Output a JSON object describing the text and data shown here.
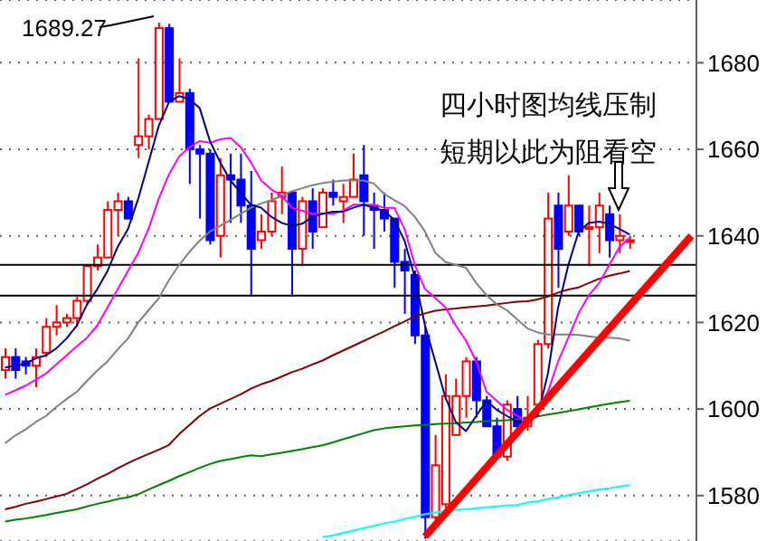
{
  "chart_data": {
    "type": "candlestick",
    "categories": [
      null,
      null,
      null,
      null,
      null,
      null,
      null,
      null,
      null,
      null,
      null,
      null,
      null,
      null,
      null,
      null,
      null,
      null,
      null,
      null,
      null,
      null,
      null,
      null,
      null,
      null,
      null,
      null,
      null,
      null,
      null,
      null,
      null,
      null,
      null,
      null,
      null,
      null,
      null,
      null,
      null,
      null,
      null,
      null,
      null,
      null,
      null,
      null,
      null,
      null,
      null,
      null,
      null,
      null,
      null,
      null,
      null,
      null,
      null,
      null,
      null,
      null,
      null,
      null,
      null,
      null,
      null,
      null
    ],
    "ohlc": [
      [
        1609,
        1614,
        1607,
        1612
      ],
      [
        1612,
        1614,
        1607,
        1609
      ],
      [
        1611,
        1612,
        1608,
        1610
      ],
      [
        1610,
        1614,
        1605,
        1612
      ],
      [
        1613,
        1621,
        1612,
        1619
      ],
      [
        1619,
        1624,
        1617,
        1620
      ],
      [
        1620,
        1622,
        1619,
        1621
      ],
      [
        1621,
        1626,
        1619,
        1625
      ],
      [
        1625,
        1633,
        1624,
        1633
      ],
      [
        1633,
        1638,
        1632,
        1635
      ],
      [
        1635,
        1648,
        1635,
        1646
      ],
      [
        1646,
        1650,
        1640,
        1648
      ],
      [
        1648,
        1649,
        1644,
        1644
      ],
      [
        1661,
        1681,
        1658,
        1663
      ],
      [
        1663,
        1668,
        1660,
        1667
      ],
      [
        1667,
        1689.27,
        1667,
        1688
      ],
      [
        1688,
        1689,
        1671,
        1671
      ],
      [
        1671,
        1681,
        1671,
        1673
      ],
      [
        1673,
        1674,
        1652,
        1660
      ],
      [
        1660,
        1661,
        1644,
        1659
      ],
      [
        1659,
        1660,
        1638,
        1639
      ],
      [
        1640,
        1658,
        1635,
        1654
      ],
      [
        1654,
        1659,
        1643,
        1653
      ],
      [
        1653,
        1659,
        1643,
        1647
      ],
      [
        1647,
        1655,
        1626,
        1637
      ],
      [
        1639,
        1645,
        1637,
        1641
      ],
      [
        1641,
        1650,
        1640,
        1648
      ],
      [
        1649,
        1656,
        1645,
        1650
      ],
      [
        1650,
        1650,
        1626,
        1637
      ],
      [
        1637,
        1649,
        1633,
        1648
      ],
      [
        1648,
        1651,
        1637,
        1641
      ],
      [
        1642,
        1651,
        1642,
        1650
      ],
      [
        1650,
        1653,
        1647,
        1649
      ],
      [
        1648,
        1652,
        1643,
        1649
      ],
      [
        1649,
        1659,
        1649,
        1653
      ],
      [
        1654,
        1661,
        1640,
        1648
      ],
      [
        1647,
        1650,
        1637,
        1646
      ],
      [
        1646,
        1650,
        1641,
        1644
      ],
      [
        1644,
        1644,
        1628,
        1634
      ],
      [
        1634,
        1637,
        1622,
        1632
      ],
      [
        1631,
        1632,
        1615,
        1617
      ],
      [
        1617,
        1619,
        1570,
        1575
      ],
      [
        1575,
        1594,
        1573,
        1587
      ],
      [
        1578,
        1608,
        1577,
        1603
      ],
      [
        1594,
        1607,
        1594,
        1603
      ],
      [
        1603,
        1612,
        1598,
        1611
      ],
      [
        1611,
        1612,
        1598,
        1602
      ],
      [
        1602,
        1603,
        1596,
        1596
      ],
      [
        1596,
        1598,
        1589,
        1589
      ],
      [
        1589,
        1602,
        1588,
        1601
      ],
      [
        1600,
        1603,
        1595,
        1596
      ],
      [
        1596,
        1603,
        1595,
        1598
      ],
      [
        1601,
        1616,
        1601,
        1615
      ],
      [
        1615,
        1650,
        1614,
        1644
      ],
      [
        1647,
        1650,
        1628,
        1637
      ],
      [
        1641,
        1654,
        1640,
        1647
      ],
      [
        1647,
        1647,
        1640,
        1641
      ],
      [
        1642,
        1647,
        1633,
        1642
      ],
      [
        1642,
        1650,
        1636,
        1647
      ],
      [
        1645,
        1647,
        1635,
        1639
      ],
      [
        1639,
        1645,
        1636,
        1640
      ],
      [
        1639,
        1640,
        1637,
        1639
      ],
      null,
      null,
      null,
      null,
      null,
      null
    ],
    "colors": [
      "#ff0000",
      "#0000ff",
      "#0000ff",
      "#ff0000",
      "#ff0000",
      "#ff0000",
      "#ff0000",
      "#ff0000",
      "#ff0000",
      "#ff0000",
      "#ff0000",
      "#ff0000",
      "#0000ff",
      "#ff0000",
      "#ff0000",
      "#ff0000",
      "#0000ff",
      "#ff0000",
      "#0000ff",
      "#0000ff",
      "#0000ff",
      "#ff0000",
      "#0000ff",
      "#0000ff",
      "#0000ff",
      "#ff0000",
      "#ff0000",
      "#ff0000",
      "#0000ff",
      "#ff0000",
      "#0000ff",
      "#ff0000",
      "#0000ff",
      "#ff0000",
      "#ff0000",
      "#0000ff",
      "#0000ff",
      "#0000ff",
      "#0000ff",
      "#0000ff",
      "#0000ff",
      "#0000ff",
      "#ff0000",
      "#ff0000",
      "#ff0000",
      "#ff0000",
      "#0000ff",
      "#0000ff",
      "#0000ff",
      "#ff0000",
      "#0000ff",
      "#ff0000",
      "#ff0000",
      "#ff0000",
      "#0000ff",
      "#ff0000",
      "#0000ff",
      "#ff0000",
      "#ff0000",
      "#0000ff",
      "#ff0000",
      "#ff0000",
      null,
      null,
      null,
      null,
      null,
      null
    ],
    "series": [
      {
        "type": "line",
        "color": "#00ffff",
        "values": [
          null,
          null,
          null,
          null,
          null,
          null,
          null,
          null,
          null,
          null,
          null,
          null,
          null,
          null,
          null,
          null,
          null,
          null,
          null,
          null,
          null,
          null,
          null,
          null,
          null,
          null,
          null,
          null,
          null,
          null,
          null,
          1570.4,
          1570.8,
          1571.4,
          1571.9,
          1572.5,
          1573,
          1573.6,
          1574,
          1574.6,
          1575.1,
          1575.7,
          1576.1,
          1576.4,
          1576.7,
          1576.8,
          1577.1,
          1577.3,
          1577.5,
          1577.7,
          1577.8,
          1578.4,
          1578.7,
          1579.2,
          1579.6,
          1580.1,
          1580.6,
          1581,
          1581.4,
          1581.7,
          1582.1,
          1582.4,
          null,
          null,
          null,
          null,
          null,
          null
        ]
      },
      {
        "type": "line",
        "color": "#008000",
        "values": [
          1574,
          1574.4,
          1574.7,
          1575.1,
          1575.5,
          1576,
          1576.4,
          1576.8,
          1577.5,
          1578.1,
          1578.6,
          1579.2,
          1579.6,
          1580.3,
          1581.4,
          1582.4,
          1583.4,
          1584.5,
          1585.4,
          1586.4,
          1587.3,
          1588,
          1588.4,
          1588.9,
          1589.3,
          1589.1,
          1589.5,
          1589.9,
          1590.3,
          1590.7,
          1591.2,
          1591.6,
          1592.3,
          1593,
          1593.7,
          1594.4,
          1595.1,
          1595.5,
          1595.8,
          1596,
          1596.2,
          1596.3,
          1596.5,
          1596.6,
          1596.7,
          1596.9,
          1597,
          1597.2,
          1597.3,
          1597.4,
          1597.6,
          1597.8,
          1598.3,
          1598.7,
          1599.1,
          1599.5,
          1599.9,
          1600.4,
          1600.8,
          1601.2,
          1601.6,
          1601.9,
          null,
          null,
          null,
          null,
          null,
          null
        ]
      },
      {
        "type": "line",
        "color": "#800000",
        "values": [
          1576.8,
          1577.4,
          1578.1,
          1578.6,
          1579.2,
          1579.8,
          1580.4,
          1581.5,
          1582.6,
          1583.9,
          1585,
          1586.3,
          1587.5,
          1588.6,
          1589.6,
          1590.6,
          1591.7,
          1594.2,
          1596.3,
          1598.4,
          1600.1,
          1601.2,
          1602.3,
          1603.4,
          1604.7,
          1605.7,
          1606.5,
          1607.5,
          1608.5,
          1609.3,
          1610.3,
          1611.2,
          1612.4,
          1613.5,
          1614.6,
          1615.7,
          1616.8,
          1617.9,
          1619.1,
          1620.2,
          1621.4,
          1622.1,
          1622.7,
          1623,
          1623.2,
          1623.5,
          1623.7,
          1623.9,
          1624.2,
          1624.5,
          1624.8,
          1624.9,
          1625.3,
          1626,
          1626.9,
          1627.6,
          1628.1,
          1629.1,
          1630.1,
          1630.8,
          1631.3,
          1631.9,
          null,
          null,
          null,
          null,
          null,
          null
        ]
      },
      {
        "type": "line",
        "color": "#808080",
        "values": [
          1592.1,
          1593.9,
          1595.3,
          1597,
          1598.4,
          1600.5,
          1602.3,
          1604,
          1606.5,
          1608.9,
          1611,
          1613.8,
          1616.3,
          1620,
          1622.8,
          1625.6,
          1629.8,
          1633.3,
          1636.3,
          1638.9,
          1641,
          1642.3,
          1643.7,
          1645.1,
          1646.5,
          1647.5,
          1648.2,
          1649.3,
          1650.3,
          1651,
          1651.7,
          1652.2,
          1652.5,
          1652.8,
          1652.8,
          1652.8,
          1652.1,
          1649.7,
          1648.3,
          1646.9,
          1644.4,
          1641,
          1636.1,
          1634,
          1633.3,
          1632.6,
          1629.1,
          1626.3,
          1624.2,
          1622.8,
          1620.7,
          1618.6,
          1617.7,
          1617.2,
          1617.2,
          1617.2,
          1617.1,
          1616.8,
          1616.5,
          1616.5,
          1616.3,
          1615.8,
          null,
          null,
          null,
          null,
          null,
          null
        ]
      },
      {
        "type": "line",
        "color": "#ff00ff",
        "values": [
          1603.3,
          1604.3,
          1605.4,
          1606.8,
          1608.2,
          1610.3,
          1612.4,
          1614.5,
          1616.5,
          1619.3,
          1623.5,
          1627.7,
          1631.9,
          1636.1,
          1641.6,
          1648.6,
          1654.2,
          1658.4,
          1660.5,
          1661.9,
          1661.5,
          1662.3,
          1662.6,
          1660.5,
          1657,
          1652.8,
          1650.7,
          1649.3,
          1646.5,
          1645.8,
          1645.1,
          1645.1,
          1645.1,
          1645.8,
          1647.2,
          1647.2,
          1647.2,
          1646.5,
          1646.5,
          1641.6,
          1633.3,
          1627.7,
          1625.6,
          1623.5,
          1619.3,
          1615.8,
          1611,
          1604,
          1601.9,
          1599.8,
          1598.4,
          1597,
          1599.8,
          1604,
          1611,
          1616.5,
          1622.1,
          1626.3,
          1629.1,
          1633.3,
          1637.5,
          1639.6,
          null,
          null,
          null,
          null,
          null,
          null
        ]
      },
      {
        "type": "line",
        "color": "#000080",
        "values": [
          1609.6,
          1610,
          1610.5,
          1611.7,
          1612.4,
          1614,
          1616.3,
          1619.3,
          1624.2,
          1627.7,
          1631.9,
          1637.5,
          1641.6,
          1648.6,
          1657,
          1665.4,
          1670.9,
          1672.3,
          1671.6,
          1669.5,
          1661.9,
          1657,
          1652.8,
          1650,
          1647.2,
          1646.5,
          1644.4,
          1643,
          1642.3,
          1642.8,
          1644.4,
          1645.1,
          1645.6,
          1645.6,
          1646.5,
          1647.2,
          1646.5,
          1645.8,
          1643.7,
          1638.9,
          1630.5,
          1619.3,
          1611,
          1602.6,
          1597,
          1594.9,
          1598.4,
          1601.9,
          1599.8,
          1598.4,
          1597,
          1597,
          1598.4,
          1608.2,
          1623.5,
          1633.3,
          1641,
          1643,
          1643.3,
          1642.8,
          1641.6,
          1640.3,
          null,
          null,
          null,
          null,
          null,
          null
        ]
      },
      {
        "type": "line",
        "color": "#ff0000",
        "values": [
          null,
          null,
          null,
          null,
          null,
          null,
          null,
          null,
          null,
          null,
          null,
          null,
          null,
          null,
          null,
          null,
          null,
          null,
          null,
          null,
          null,
          null,
          null,
          null,
          null,
          null,
          null,
          null,
          null,
          null,
          null,
          null,
          null,
          null,
          null,
          null,
          null,
          null,
          null,
          null,
          null,
          1570.5,
          null,
          null,
          null,
          null,
          null,
          null,
          null,
          null,
          null,
          null,
          null,
          null,
          null,
          null,
          null,
          null,
          null,
          null,
          null,
          null,
          null,
          null,
          null,
          null,
          null,
          1640
        ]
      }
    ],
    "ref_lines": [
      {
        "axis": "y",
        "value": 1633.3,
        "color": "#000000"
      },
      {
        "axis": "y",
        "value": 1626.2,
        "color": "#000000"
      }
    ],
    "annotations": [
      "1689.27",
      "四小时图均线压制",
      "短期以此为阻看空"
    ],
    "ylim": [
      1569.5,
      1694.5
    ],
    "yticks": [
      1580,
      1600,
      1620,
      1640,
      1660,
      1680
    ],
    "grid": "y",
    "tick_labels": "y"
  }
}
